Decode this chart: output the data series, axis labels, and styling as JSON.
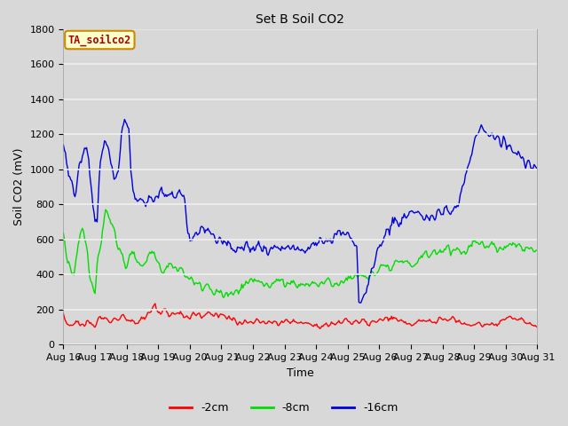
{
  "title": "Set B Soil CO2",
  "xlabel": "Time",
  "ylabel": "Soil CO2 (mV)",
  "ylim": [
    0,
    1800
  ],
  "yticks": [
    0,
    200,
    400,
    600,
    800,
    1000,
    1200,
    1400,
    1600,
    1800
  ],
  "xtick_labels": [
    "Aug 16",
    "Aug 17",
    "Aug 18",
    "Aug 19",
    "Aug 20",
    "Aug 21",
    "Aug 22",
    "Aug 23",
    "Aug 24",
    "Aug 25",
    "Aug 26",
    "Aug 27",
    "Aug 28",
    "Aug 29",
    "Aug 30",
    "Aug 31"
  ],
  "legend_label": "TA_soilco2",
  "legend_entries": [
    "-2cm",
    "-8cm",
    "-16cm"
  ],
  "line_colors": [
    "#ff0000",
    "#00dd00",
    "#0000dd"
  ],
  "fig_facecolor": "#d8d8d8",
  "axes_facecolor": "#d8d8d8",
  "grid_color": "#f0f0f0",
  "linewidth": 1.0,
  "label_box_facecolor": "#ffffcc",
  "label_box_edgecolor": "#cc8800",
  "label_text_color": "#aa0000",
  "n_points": 480,
  "red_envelope": {
    "base": [
      160,
      140,
      115,
      110,
      110,
      110,
      130,
      125,
      110,
      115,
      130,
      130,
      105,
      110,
      105,
      100,
      140,
      155,
      145,
      145,
      155,
      150,
      130,
      135,
      150,
      145,
      135,
      145,
      155,
      155,
      140,
      135,
      140,
      140,
      125,
      115,
      135,
      140,
      150,
      165,
      170,
      190,
      225,
      240,
      200,
      180,
      175,
      195,
      205,
      185,
      175,
      185,
      180,
      170,
      180,
      180,
      165,
      160,
      165,
      160,
      165,
      160,
      155,
      160,
      170,
      160,
      170,
      175,
      170,
      165,
      180,
      165,
      175,
      160,
      165,
      160,
      155,
      150,
      160,
      150,
      145,
      145,
      130,
      135,
      125,
      130,
      130,
      125,
      120,
      130,
      135,
      130,
      125,
      125,
      130,
      125,
      130,
      125,
      120,
      130,
      130,
      120,
      130,
      135,
      145,
      135,
      135,
      130,
      130,
      125,
      120,
      130,
      130,
      120,
      130,
      120,
      115,
      110,
      115,
      120,
      115,
      110,
      110,
      110,
      110,
      110,
      120,
      115,
      115,
      120,
      125,
      130,
      140,
      150,
      135,
      130,
      125,
      130,
      135,
      125,
      125,
      130,
      125,
      120,
      125,
      130,
      125,
      125,
      130,
      135,
      140,
      150,
      145,
      140,
      145,
      145,
      145,
      140,
      140,
      135,
      130,
      130,
      125,
      120,
      120,
      115,
      115,
      125,
      130,
      135,
      130,
      130,
      130,
      130,
      135,
      135,
      140,
      140,
      140,
      140,
      145,
      145,
      145,
      145,
      145,
      140,
      135,
      130,
      125,
      120,
      115,
      110,
      105,
      110,
      115,
      120,
      120,
      115,
      115,
      120,
      120,
      115,
      115,
      120,
      125,
      130,
      135,
      140,
      145,
      150,
      155,
      155,
      150,
      145,
      140,
      135,
      130,
      130,
      130,
      125,
      120,
      120,
      115,
      110
    ],
    "noise": 15
  },
  "green_envelope": {
    "base": [
      620,
      560,
      490,
      450,
      400,
      395,
      510,
      590,
      620,
      640,
      635,
      560,
      420,
      345,
      330,
      325,
      460,
      540,
      615,
      715,
      790,
      730,
      685,
      665,
      625,
      595,
      565,
      510,
      490,
      465,
      450,
      495,
      515,
      505,
      495,
      480,
      475,
      465,
      455,
      455,
      505,
      515,
      520,
      505,
      495,
      470,
      455,
      445,
      445,
      445,
      455,
      455,
      455,
      445,
      445,
      430,
      420,
      390,
      380,
      370,
      375,
      365,
      355,
      345,
      340,
      335,
      330,
      325,
      320,
      310,
      305,
      300,
      295,
      290,
      290,
      285,
      280,
      280,
      280,
      278,
      278,
      295,
      305,
      315,
      325,
      335,
      345,
      345,
      350,
      355,
      360,
      365,
      365,
      360,
      350,
      345,
      345,
      350,
      360,
      365,
      360,
      355,
      350,
      350,
      355,
      355,
      355,
      355,
      350,
      345,
      345,
      345,
      350,
      345,
      345,
      345,
      345,
      350,
      355,
      355,
      355,
      350,
      345,
      345,
      345,
      350,
      355,
      355,
      355,
      360,
      360,
      360,
      360,
      365,
      370,
      375,
      385,
      390,
      395,
      400,
      400,
      400,
      395,
      390,
      390,
      395,
      400,
      405,
      415,
      420,
      425,
      430,
      425,
      430,
      435,
      440,
      445,
      455,
      460,
      460,
      460,
      460,
      462,
      462,
      462,
      465,
      470,
      480,
      495,
      505,
      515,
      510,
      510,
      515,
      520,
      525,
      530,
      535,
      540,
      545,
      555,
      555,
      545,
      545,
      535,
      530,
      525,
      530,
      535,
      545,
      550,
      560,
      565,
      570,
      575,
      580,
      580,
      575,
      570,
      565,
      560,
      558,
      555,
      555,
      552,
      555,
      560,
      565,
      570,
      575,
      578,
      580,
      575,
      570,
      565,
      560,
      555,
      550,
      548,
      545,
      548,
      550,
      548,
      545
    ],
    "noise": 25
  },
  "blue_envelope": {
    "base": [
      1150,
      1080,
      990,
      950,
      920,
      820,
      925,
      1010,
      1060,
      1110,
      1130,
      1105,
      910,
      810,
      745,
      715,
      1010,
      1105,
      1155,
      1140,
      1115,
      1010,
      975,
      965,
      955,
      1065,
      1210,
      1310,
      1290,
      1260,
      1005,
      880,
      840,
      820,
      845,
      815,
      800,
      835,
      855,
      845,
      820,
      840,
      865,
      870,
      855,
      845,
      840,
      850,
      860,
      850,
      850,
      862,
      850,
      840,
      830,
      615,
      610,
      600,
      615,
      625,
      645,
      655,
      665,
      650,
      640,
      645,
      640,
      620,
      600,
      590,
      580,
      575,
      570,
      560,
      550,
      545,
      540,
      545,
      550,
      560,
      560,
      560,
      555,
      550,
      545,
      545,
      550,
      555,
      555,
      550,
      545,
      540,
      540,
      545,
      550,
      555,
      560,
      560,
      558,
      555,
      555,
      555,
      555,
      550,
      545,
      545,
      550,
      555,
      560,
      565,
      575,
      580,
      585,
      590,
      590,
      590,
      590,
      595,
      600,
      605,
      615,
      620,
      625,
      625,
      620,
      615,
      610,
      605,
      600,
      595,
      590,
      245,
      235,
      270,
      295,
      325,
      385,
      435,
      475,
      515,
      555,
      595,
      625,
      645,
      660,
      672,
      682,
      692,
      697,
      702,
      707,
      712,
      718,
      725,
      742,
      752,
      757,
      762,
      757,
      752,
      747,
      742,
      742,
      748,
      752,
      757,
      762,
      762,
      762,
      758,
      763,
      768,
      772,
      782,
      802,
      822,
      862,
      905,
      952,
      1002,
      1055,
      1105,
      1155,
      1205,
      1245,
      1255,
      1245,
      1235,
      1222,
      1212,
      1202,
      1192,
      1182,
      1172,
      1162,
      1152,
      1142,
      1132,
      1122,
      1112,
      1102,
      1092,
      1082,
      1072,
      1062,
      1052,
      1042,
      1032,
      1022,
      1012,
      1002
    ],
    "noise": 30
  }
}
